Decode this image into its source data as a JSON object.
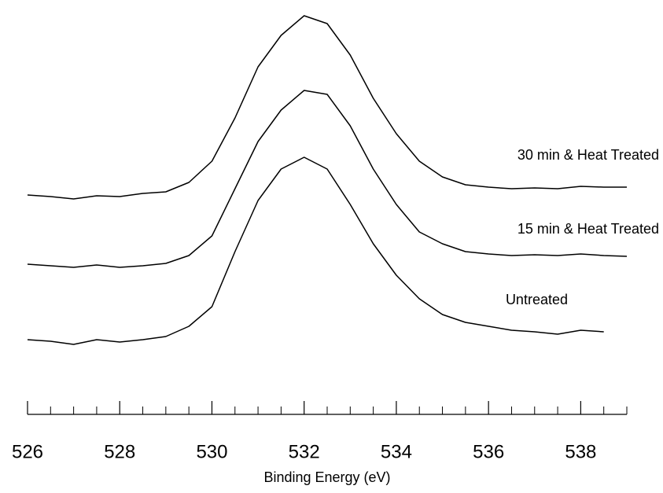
{
  "chart_data": {
    "type": "line",
    "x_label": "Binding Energy (eV)",
    "x": [
      526,
      526.5,
      527,
      527.5,
      528,
      528.5,
      529,
      529.5,
      530,
      530.5,
      531,
      531.5,
      532,
      532.5,
      533,
      533.5,
      534,
      534.5,
      535,
      535.5,
      536,
      536.5,
      537,
      537.5,
      538,
      538.5,
      539
    ],
    "series": [
      {
        "name": "30 min & Heat Treated",
        "color": "#000000",
        "values": [
          50.4,
          50.0,
          49.4,
          50.2,
          50.0,
          50.8,
          51.2,
          53.6,
          59.0,
          70.0,
          83.0,
          91.0,
          96.0,
          94.0,
          86.0,
          75.0,
          66.0,
          59.0,
          55.0,
          53.0,
          52.4,
          52.0,
          52.2,
          52.0,
          52.6,
          52.4,
          52.4
        ]
      },
      {
        "name": "15 min & Heat Treated",
        "color": "#000000",
        "values": [
          32.8,
          32.4,
          32.0,
          32.6,
          32.0,
          32.4,
          33.0,
          35.0,
          40.0,
          52.0,
          64.0,
          72.0,
          77.0,
          76.0,
          68.0,
          57.0,
          48.0,
          41.0,
          38.0,
          36.0,
          35.4,
          35.0,
          35.2,
          35.0,
          35.4,
          35.0,
          34.8
        ]
      },
      {
        "name": "Untreated",
        "color": "#000000",
        "values": [
          13.6,
          13.2,
          12.4,
          13.6,
          13.0,
          13.6,
          14.4,
          17.0,
          22.0,
          36.0,
          49.0,
          57.0,
          60.0,
          57.0,
          48.0,
          38.0,
          30.0,
          24.0,
          20.0,
          18.0,
          17.0,
          16.0,
          15.6,
          15.0,
          16.0,
          15.6,
          null
        ]
      }
    ],
    "xlim": [
      526,
      539
    ],
    "xticks": [
      526,
      528,
      530,
      532,
      534,
      536,
      538
    ],
    "xminorticks": [
      526.5,
      527,
      527.5,
      528.5,
      529,
      529.5,
      530.5,
      531,
      531.5,
      532.5,
      533,
      533.5,
      534.5,
      535,
      535.5,
      536.5,
      537,
      537.5,
      538.5,
      539
    ],
    "ylim": [
      0,
      100
    ],
    "grid": false
  }
}
